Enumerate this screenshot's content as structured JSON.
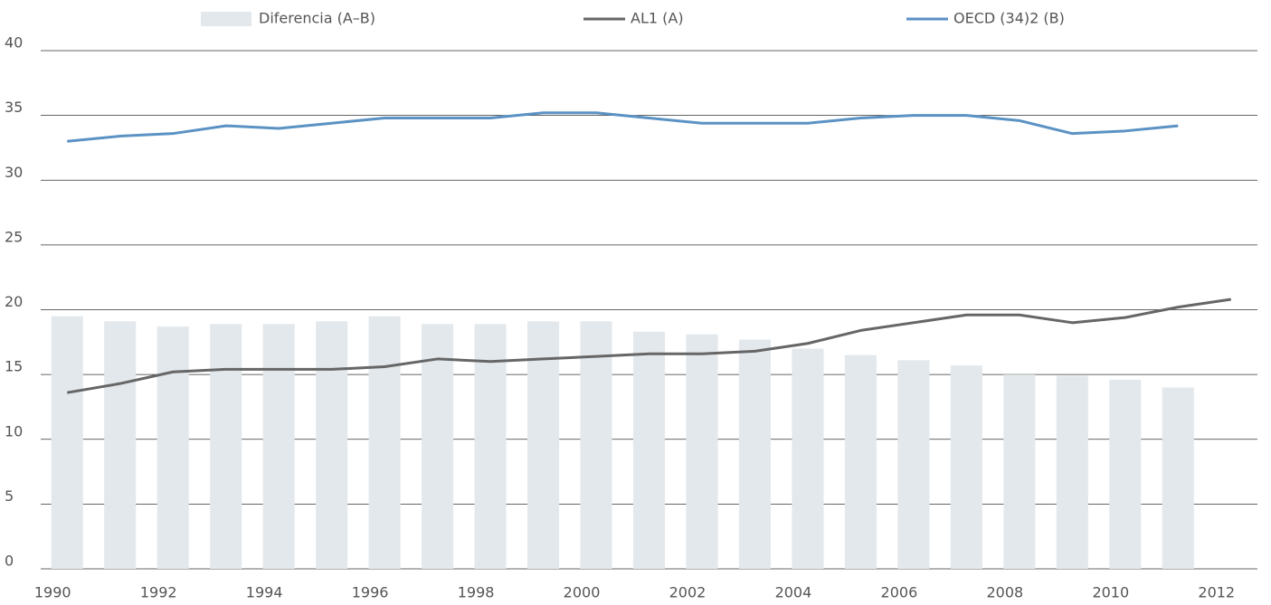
{
  "chart_data": {
    "type": "bar",
    "categories": [
      "1990",
      null,
      "1992",
      null,
      "1994",
      null,
      "1996",
      null,
      "1998",
      null,
      "2000",
      null,
      "2002",
      null,
      "2004",
      null,
      "2006",
      null,
      "2008",
      null,
      "2010",
      null,
      "2012"
    ],
    "series": [
      {
        "name": "Diferencia (A–B)",
        "type": "bar",
        "color": "#e3e8ec",
        "values": [
          19.5,
          19.1,
          18.7,
          18.9,
          18.9,
          19.1,
          19.5,
          18.9,
          18.9,
          19.1,
          19.1,
          18.3,
          18.1,
          17.7,
          17.0,
          16.5,
          16.1,
          15.7,
          15.0,
          14.9,
          14.6,
          14.0,
          null
        ]
      },
      {
        "name": "AL1 (A)",
        "type": "line",
        "color": "#666666",
        "values": [
          13.6,
          14.3,
          15.2,
          15.4,
          15.4,
          15.4,
          15.6,
          16.2,
          16.0,
          16.2,
          16.4,
          16.6,
          16.6,
          16.8,
          17.4,
          18.4,
          19.0,
          19.6,
          19.6,
          19.0,
          19.4,
          20.2,
          20.8
        ]
      },
      {
        "name": "OECD (34)2 (B)",
        "type": "line",
        "color": "#5b92c4",
        "values": [
          33.0,
          33.4,
          33.6,
          34.2,
          34.0,
          34.4,
          34.8,
          34.8,
          34.8,
          35.2,
          35.2,
          34.8,
          34.4,
          34.4,
          34.4,
          34.8,
          35.0,
          35.0,
          34.6,
          33.6,
          33.8,
          34.2,
          null
        ]
      }
    ],
    "ylim": [
      0,
      40
    ],
    "yticks": [
      0,
      5,
      10,
      15,
      20,
      25,
      30,
      35,
      40
    ],
    "grid": true,
    "legend": "top"
  }
}
